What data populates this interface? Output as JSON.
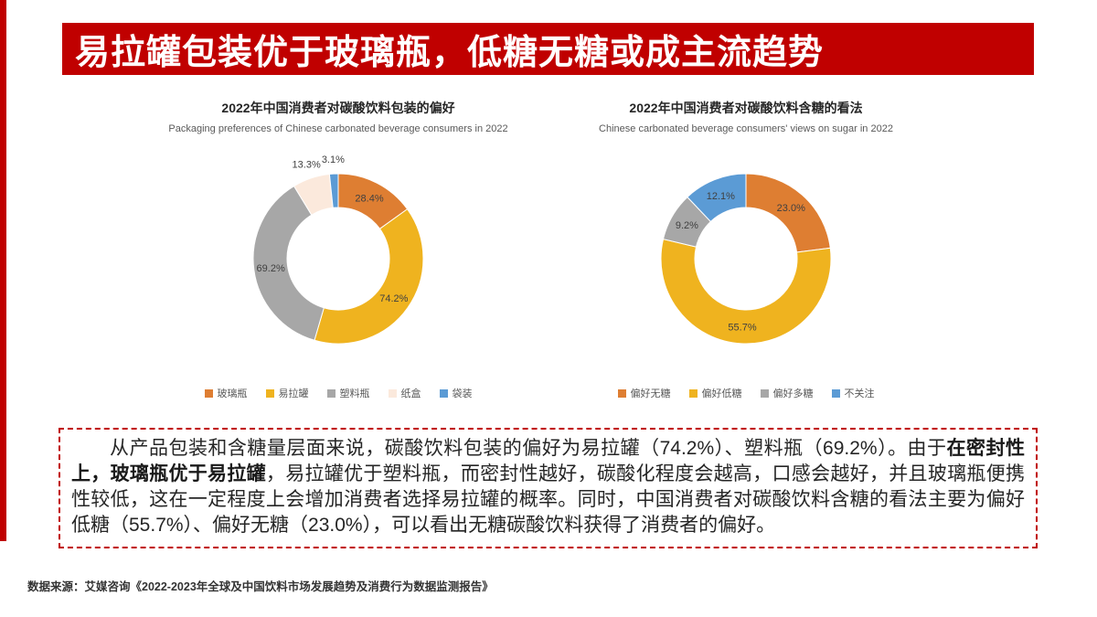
{
  "header": {
    "title": "易拉罐包装优于玻璃瓶，低糖无糖或成主流趋势"
  },
  "colors": {
    "accent_red": "#C00000"
  },
  "chart_data": [
    {
      "type": "pie",
      "donut": true,
      "title": "2022年中国消费者对碳酸饮料包装的偏好",
      "subtitle": "Packaging preferences of Chinese carbonated beverage consumers in 2022",
      "labels": [
        "玻璃瓶",
        "易拉罐",
        "塑料瓶",
        "纸盒",
        "袋装"
      ],
      "values": [
        28.4,
        74.2,
        69.2,
        13.3,
        3.1
      ],
      "colors": [
        "#DE7E32",
        "#EFB31F",
        "#A7A7A7",
        "#FBE9DC",
        "#5B9BD5"
      ],
      "legend_position": "bottom",
      "label_format": "percent"
    },
    {
      "type": "pie",
      "donut": true,
      "title": "2022年中国消费者对碳酸饮料含糖的看法",
      "subtitle": "Chinese carbonated beverage consumers' views on sugar in 2022",
      "labels": [
        "偏好无糖",
        "偏好低糖",
        "偏好多糖",
        "不关注"
      ],
      "values": [
        23.0,
        55.7,
        9.2,
        12.1
      ],
      "colors": [
        "#DE7E32",
        "#EFB31F",
        "#A7A7A7",
        "#5B9BD5"
      ],
      "legend_position": "bottom",
      "label_format": "percent"
    }
  ],
  "analysis": {
    "segments": [
      {
        "text": "从产品包装和含糖量层面来说，碳酸饮料包装的偏好为易拉罐（74.2%）、塑料瓶（69.2%）。由于",
        "bold": false
      },
      {
        "text": "在密封性上，玻璃瓶优于易拉罐",
        "bold": true
      },
      {
        "text": "，易拉罐优于塑料瓶，而密封性越好，碳酸化程度会越高，口感会越好，并且玻璃瓶便携性较低，这在一定程度上会增加消费者选择易拉罐的概率。同时，中国消费者对碳酸饮料含糖的看法主要为偏好低糖（55.7%）、偏好无糖（23.0%），可以看出无糖碳酸饮料获得了消费者的偏好。",
        "bold": false
      }
    ]
  },
  "source": "数据来源：艾媒咨询《2022-2023年全球及中国饮料市场发展趋势及消费行为数据监测报告》"
}
